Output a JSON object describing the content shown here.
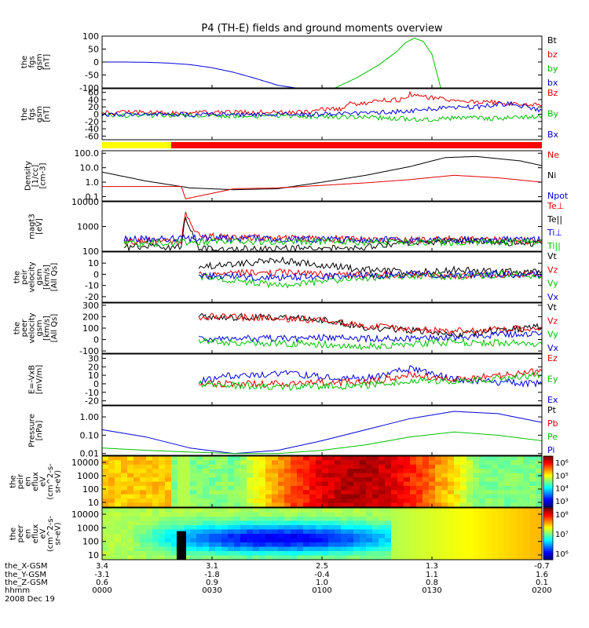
{
  "chart_data": {
    "type": "line",
    "title": "P4 (TH-E) fields and ground moments overview",
    "panels": [
      {
        "id": "fgs-gsm",
        "type": "line",
        "ylabel": [
          "the",
          "fgs",
          "gsm",
          "[nT]"
        ],
        "ylim": [
          -100,
          100
        ],
        "yticks": [
          "100",
          "50",
          "0",
          "-50",
          "-100"
        ],
        "legend": [
          {
            "name": "Bt",
            "color": "#000000"
          },
          {
            "name": "bz",
            "color": "#e00000"
          },
          {
            "name": "by",
            "color": "#00c000"
          },
          {
            "name": "bx",
            "color": "#0000dd"
          }
        ],
        "series": [
          {
            "name": "bx",
            "color": "#0000dd",
            "x": [
              0,
              0.05,
              0.1,
              0.15,
              0.2,
              0.25,
              0.3,
              0.35,
              0.4,
              0.44
            ],
            "y": [
              0,
              0,
              -1,
              -4,
              -10,
              -22,
              -40,
              -64,
              -90,
              -100
            ]
          },
          {
            "name": "by",
            "color": "#00c000",
            "x": [
              0.53,
              0.58,
              0.63,
              0.67,
              0.69,
              0.71,
              0.73,
              0.75,
              0.77
            ],
            "y": [
              -100,
              -60,
              -10,
              40,
              75,
              92,
              80,
              30,
              -100
            ]
          }
        ]
      },
      {
        "id": "fgs-gsm-zoom",
        "type": "line",
        "ylabel": [
          "the",
          "fgs",
          "gsm",
          "[nT]"
        ],
        "ylim": [
          -70,
          70
        ],
        "yticks": [
          "60",
          "40",
          "20",
          "0",
          "-20",
          "-40",
          "-60"
        ],
        "legend": [
          {
            "name": "Bz",
            "color": "#e00000"
          },
          {
            "name": "By",
            "color": "#00c000"
          },
          {
            "name": "Bx",
            "color": "#0000dd"
          }
        ],
        "series": [
          {
            "name": "Bz",
            "color": "#e00000",
            "x": [
              0,
              0.3,
              0.48,
              0.49,
              0.55,
              0.56,
              0.6,
              0.61,
              0.68,
              0.7,
              0.75,
              0.85,
              1.0
            ],
            "y": [
              5,
              5,
              5,
              12,
              14,
              28,
              30,
              38,
              40,
              55,
              45,
              35,
              25
            ]
          },
          {
            "name": "By",
            "color": "#00c000",
            "x": [
              0,
              0.3,
              0.5,
              0.65,
              0.75,
              0.82,
              0.88,
              1.0
            ],
            "y": [
              -2,
              -4,
              -6,
              -10,
              -15,
              -8,
              -12,
              -5
            ]
          },
          {
            "name": "Bx",
            "color": "#0000dd",
            "x": [
              0,
              0.3,
              0.5,
              0.65,
              0.75,
              0.85,
              0.93,
              1.0
            ],
            "y": [
              0,
              -1,
              0,
              5,
              15,
              20,
              30,
              10
            ]
          }
        ]
      },
      {
        "id": "density",
        "type": "line",
        "ylabel": [
          "Density",
          "[1/cc]",
          "[cm-3]"
        ],
        "ylog": true,
        "ylim": [
          0.05,
          150
        ],
        "yticks": [
          "100.0",
          "10.0",
          "1.0",
          "0.1"
        ],
        "legend": [
          {
            "name": "Ne",
            "color": "#e00000"
          },
          {
            "name": "Ni",
            "color": "#000000"
          },
          {
            "name": "Npot",
            "color": "#0000dd"
          }
        ],
        "series": [
          {
            "name": "Ni",
            "color": "#000000",
            "x": [
              0,
              0.1,
              0.2,
              0.3,
              0.4,
              0.5,
              0.6,
              0.7,
              0.78,
              0.85,
              0.95,
              1.0
            ],
            "y": [
              5,
              1.2,
              0.4,
              0.3,
              0.35,
              1,
              3,
              12,
              50,
              60,
              30,
              14
            ]
          },
          {
            "name": "Ne",
            "color": "#e00000",
            "x": [
              0,
              0.18,
              0.19,
              0.3,
              0.4,
              0.5,
              0.6,
              0.7,
              0.8,
              0.9,
              1.0
            ],
            "y": [
              0.5,
              0.5,
              0.07,
              0.35,
              0.4,
              0.6,
              0.9,
              1.5,
              3,
              2,
              1
            ]
          }
        ]
      },
      {
        "id": "magt3",
        "type": "line",
        "ylabel": [
          "magt3",
          "[eV]"
        ],
        "ylog": true,
        "ylim": [
          100,
          10000
        ],
        "yticks": [
          "10000",
          "1000",
          "100"
        ],
        "legend": [
          {
            "name": "Te⊥",
            "color": "#e00000"
          },
          {
            "name": "Te||",
            "color": "#000000"
          },
          {
            "name": "Ti⊥",
            "color": "#0000dd"
          },
          {
            "name": "Ti||",
            "color": "#00c000"
          }
        ],
        "series": [
          {
            "name": "Te⊥",
            "color": "#e00000",
            "x": [
              0.05,
              0.18,
              0.19,
              0.22,
              0.35,
              0.6,
              0.8,
              1.0
            ],
            "y": [
              250,
              250,
              3000,
              400,
              350,
              300,
              300,
              250
            ]
          },
          {
            "name": "Te||",
            "color": "#000000",
            "x": [
              0.05,
              0.18,
              0.19,
              0.22,
              0.35,
              0.6,
              0.8,
              1.0
            ],
            "y": [
              150,
              150,
              2500,
              130,
              120,
              150,
              280,
              200
            ]
          },
          {
            "name": "Ti⊥",
            "color": "#0000dd",
            "x": [
              0.05,
              0.3,
              0.5,
              0.75,
              1.0
            ],
            "y": [
              320,
              330,
              300,
              280,
              300
            ]
          },
          {
            "name": "Ti||",
            "color": "#00c000",
            "x": [
              0.05,
              0.3,
              0.5,
              0.75,
              1.0
            ],
            "y": [
              200,
              250,
              240,
              230,
              240
            ]
          }
        ]
      },
      {
        "id": "peir-velocity",
        "type": "line",
        "ylabel": [
          "the",
          "peir",
          "velocity",
          "gsm",
          "[km/s]",
          "[All Qs]"
        ],
        "ylim": [
          -25,
          20
        ],
        "yticks": [
          "10",
          "0",
          "-10",
          "-20"
        ],
        "legend": [
          {
            "name": "Vt",
            "color": "#000000"
          },
          {
            "name": "Vz",
            "color": "#e00000"
          },
          {
            "name": "Vy",
            "color": "#00c000"
          },
          {
            "name": "Vx",
            "color": "#0000dd"
          }
        ],
        "series": [
          {
            "name": "Vt",
            "color": "#000000",
            "x": [
              0.22,
              0.3,
              0.4,
              0.5,
              0.6,
              0.7,
              0.8,
              0.9,
              1.0
            ],
            "y": [
              7,
              9,
              13,
              8,
              4,
              2,
              4,
              2,
              3
            ]
          },
          {
            "name": "Vz",
            "color": "#e00000",
            "x": [
              0.22,
              0.3,
              0.4,
              0.5,
              0.6,
              0.7,
              0.8,
              0.9,
              1.0
            ],
            "y": [
              0,
              1,
              2,
              0,
              -1,
              0,
              -1,
              0,
              0
            ]
          },
          {
            "name": "Vy",
            "color": "#00c000",
            "x": [
              0.22,
              0.3,
              0.4,
              0.5,
              0.6,
              0.7,
              0.8,
              0.9,
              1.0
            ],
            "y": [
              -2,
              -5,
              -10,
              -6,
              -3,
              -1,
              -2,
              0,
              -1
            ]
          },
          {
            "name": "Vx",
            "color": "#0000dd",
            "x": [
              0.22,
              0.3,
              0.4,
              0.5,
              0.6,
              0.7,
              0.8,
              0.9,
              1.0
            ],
            "y": [
              -1,
              -2,
              -3,
              -2,
              -1,
              0,
              0,
              0,
              0
            ]
          }
        ]
      },
      {
        "id": "peer-velocity",
        "type": "line",
        "ylabel": [
          "the",
          "peer",
          "velocity",
          "gsm",
          "[km/s]",
          "[All Qs]"
        ],
        "ylim": [
          -120,
          320
        ],
        "yticks": [
          "300",
          "200",
          "100",
          "0",
          "-100"
        ],
        "legend": [
          {
            "name": "Vt",
            "color": "#000000"
          },
          {
            "name": "Vz",
            "color": "#e00000"
          },
          {
            "name": "Vy",
            "color": "#00c000"
          },
          {
            "name": "Vx",
            "color": "#0000dd"
          }
        ],
        "series": [
          {
            "name": "Vt",
            "color": "#000000",
            "x": [
              0.22,
              0.4,
              0.5,
              0.6,
              0.7,
              0.8,
              0.9,
              1.0
            ],
            "y": [
              200,
              195,
              175,
              110,
              80,
              45,
              80,
              110
            ]
          },
          {
            "name": "Vz",
            "color": "#e00000",
            "x": [
              0.22,
              0.4,
              0.5,
              0.6,
              0.7,
              0.8,
              0.9,
              1.0
            ],
            "y": [
              200,
              190,
              165,
              120,
              90,
              70,
              90,
              100
            ]
          },
          {
            "name": "Vx",
            "color": "#0000dd",
            "x": [
              0.22,
              0.4,
              0.5,
              0.6,
              0.7,
              0.8,
              0.9,
              1.0
            ],
            "y": [
              0,
              10,
              15,
              5,
              10,
              20,
              40,
              60
            ]
          },
          {
            "name": "Vy",
            "color": "#00c000",
            "x": [
              0.22,
              0.4,
              0.5,
              0.6,
              0.7,
              0.8,
              0.9,
              1.0
            ],
            "y": [
              -20,
              -30,
              -40,
              -60,
              -40,
              -20,
              -30,
              -40
            ]
          }
        ]
      },
      {
        "id": "e-vxb",
        "type": "line",
        "ylabel": [
          "E=-VxB",
          "[mV/m]"
        ],
        "ylim": [
          -25,
          35
        ],
        "yticks": [
          "30",
          "20",
          "10",
          "0",
          "-10",
          "-20"
        ],
        "legend": [
          {
            "name": "Ez",
            "color": "#e00000"
          },
          {
            "name": "Ey",
            "color": "#00c000"
          },
          {
            "name": "Ex",
            "color": "#0000dd"
          }
        ],
        "series": [
          {
            "name": "Ex",
            "color": "#0000dd",
            "x": [
              0.22,
              0.3,
              0.4,
              0.5,
              0.6,
              0.7,
              0.8,
              0.9,
              1.0
            ],
            "y": [
              3,
              10,
              12,
              9,
              6,
              18,
              5,
              2,
              0
            ]
          },
          {
            "name": "Ez",
            "color": "#e00000",
            "x": [
              0.22,
              0.3,
              0.4,
              0.5,
              0.6,
              0.7,
              0.8,
              0.9,
              1.0
            ],
            "y": [
              0,
              0,
              0,
              1,
              2,
              10,
              5,
              10,
              15
            ]
          },
          {
            "name": "Ey",
            "color": "#00c000",
            "x": [
              0.22,
              0.3,
              0.4,
              0.5,
              0.6,
              0.7,
              0.8,
              0.9,
              1.0
            ],
            "y": [
              0,
              -2,
              -4,
              -3,
              -2,
              4,
              3,
              6,
              10
            ]
          }
        ]
      },
      {
        "id": "pressure",
        "type": "line",
        "ylabel": [
          "Pressure",
          "[nPa]"
        ],
        "ylog": true,
        "ylim": [
          0.008,
          4
        ],
        "yticks": [
          "1.00",
          "0.10",
          "0.01"
        ],
        "legend": [
          {
            "name": "Pt",
            "color": "#000000"
          },
          {
            "name": "Pb",
            "color": "#e00000"
          },
          {
            "name": "Pe",
            "color": "#00c000"
          },
          {
            "name": "Pi",
            "color": "#0000dd"
          }
        ],
        "series": [
          {
            "name": "Pi",
            "color": "#0000dd",
            "x": [
              0,
              0.1,
              0.2,
              0.3,
              0.4,
              0.5,
              0.6,
              0.7,
              0.8,
              0.9,
              1.0
            ],
            "y": [
              0.2,
              0.08,
              0.02,
              0.01,
              0.015,
              0.05,
              0.2,
              0.8,
              2,
              1.5,
              0.5
            ]
          },
          {
            "name": "Pe",
            "color": "#00c000",
            "x": [
              0,
              0.1,
              0.2,
              0.3,
              0.4,
              0.5,
              0.6,
              0.7,
              0.8,
              0.9,
              1.0
            ],
            "y": [
              0.02,
              0.015,
              0.012,
              0.01,
              0.01,
              0.015,
              0.03,
              0.08,
              0.15,
              0.1,
              0.05
            ]
          }
        ]
      },
      {
        "id": "peir-en-eflux",
        "type": "heatmap",
        "ylabel": [
          "the",
          "peir",
          "en",
          "eflux",
          "eV",
          "(cm^2-s-",
          "sr-eV)"
        ],
        "ylog": true,
        "yticks": [
          "10000",
          "1000",
          "100",
          "10"
        ],
        "colorbar_ticks": [
          "10⁶",
          "10⁵",
          "10⁴",
          "10³"
        ]
      },
      {
        "id": "peer-en-eflux",
        "type": "heatmap",
        "ylabel": [
          "the",
          "peer",
          "en",
          "eflux",
          "eV",
          "(cm^2-s-",
          "sr-eV)"
        ],
        "ylog": true,
        "yticks": [
          "10000",
          "1000",
          "100",
          "10"
        ],
        "colorbar_ticks": [
          "10⁸",
          "10⁷",
          "10⁶"
        ]
      }
    ],
    "x_axis": {
      "row_labels": [
        "the_X-GSM",
        "the_Y-GSM",
        "the_Z-GSM",
        "hhmm",
        "2008 Dec 19"
      ],
      "columns": [
        {
          "X": "3.4",
          "Y": "-3.1",
          "Z": "0.6",
          "hhmm": "0000"
        },
        {
          "X": "3.1",
          "Y": "-1.8",
          "Z": "0.9",
          "hhmm": "0030"
        },
        {
          "X": "2.5",
          "Y": "-0.4",
          "Z": "1.0",
          "hhmm": "0100"
        },
        {
          "X": "1.3",
          "Y": "1.1",
          "Z": "0.8",
          "hhmm": "0130"
        },
        {
          "X": "-0.7",
          "Y": "1.6",
          "Z": "0.1",
          "hhmm": "0200"
        }
      ]
    }
  }
}
